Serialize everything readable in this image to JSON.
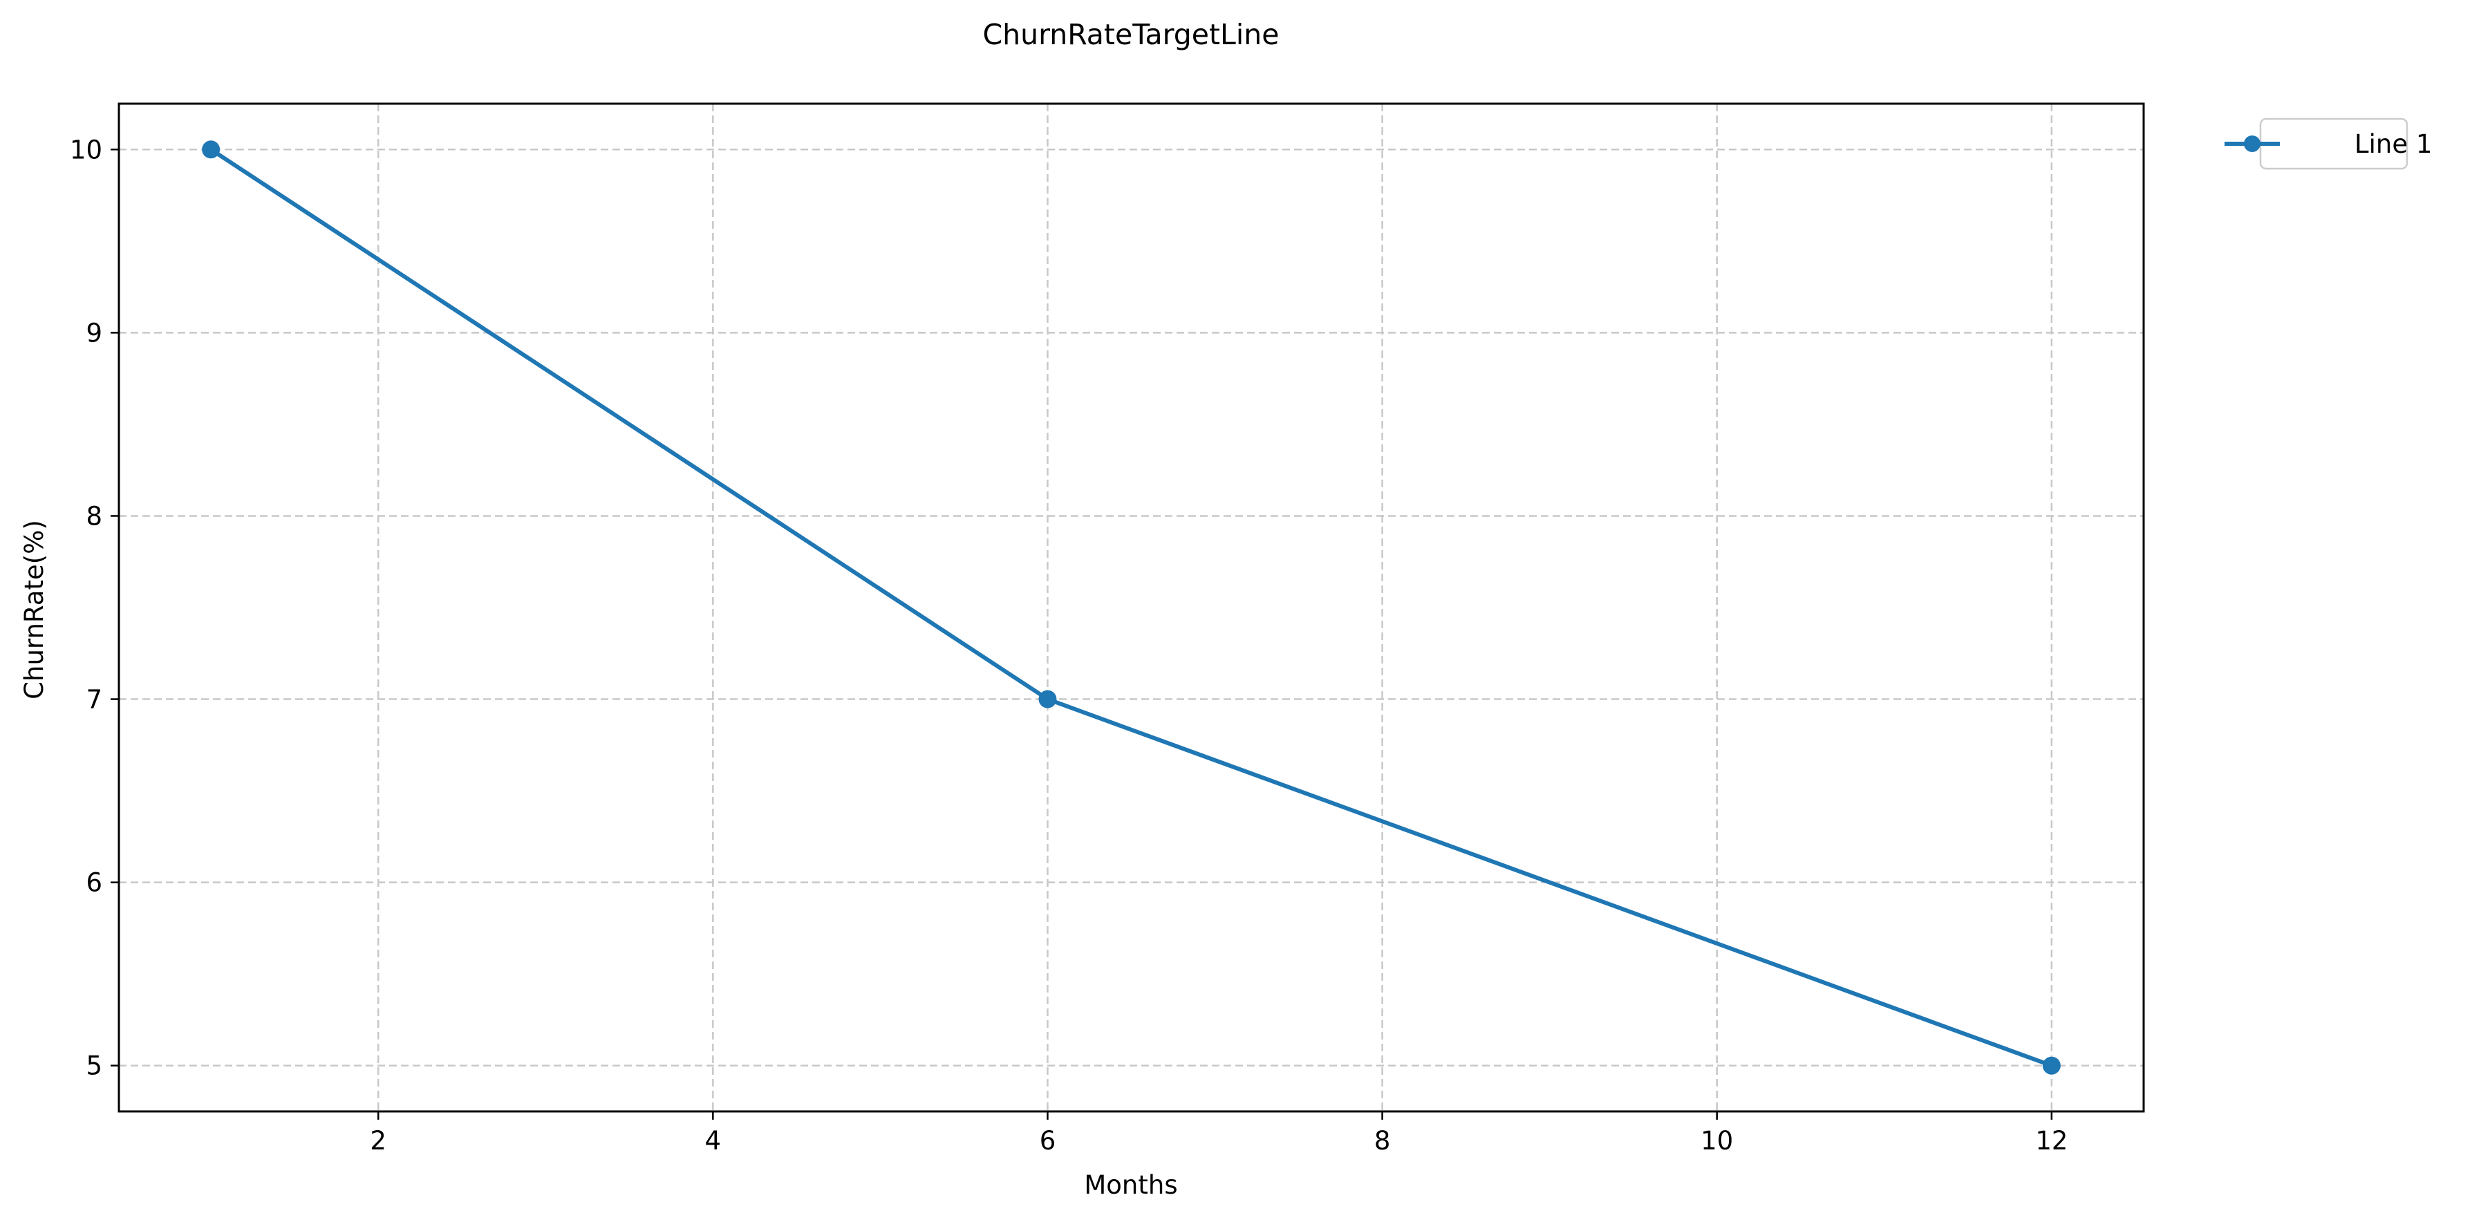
{
  "chart_data": {
    "type": "line",
    "title": "ChurnRateTargetLine",
    "xlabel": "Months",
    "ylabel": "ChurnRate(%)",
    "xlim": [
      0.45,
      12.55
    ],
    "ylim": [
      4.75,
      10.25
    ],
    "xticks": [
      2,
      4,
      6,
      8,
      10,
      12
    ],
    "yticks": [
      5,
      6,
      7,
      8,
      9,
      10
    ],
    "grid": true,
    "legend_position": "outside-top-right",
    "series": [
      {
        "name": "Line 1",
        "color": "#1f77b4",
        "marker": "circle",
        "x": [
          1,
          6,
          12
        ],
        "y": [
          10,
          7,
          5
        ]
      }
    ]
  }
}
